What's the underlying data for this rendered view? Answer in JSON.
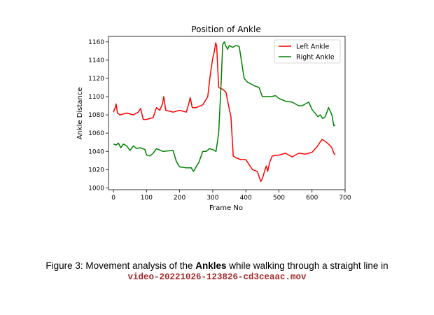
{
  "chart_data": {
    "type": "line",
    "title": "Position of Ankle",
    "xlabel": "Frame No",
    "ylabel": "Ankle  Distance",
    "xlim": [
      -15,
      700
    ],
    "ylim": [
      998,
      1166
    ],
    "xticks": [
      0,
      100,
      200,
      300,
      400,
      500,
      600,
      700
    ],
    "yticks": [
      1000,
      1020,
      1040,
      1060,
      1080,
      1100,
      1120,
      1140,
      1160
    ],
    "grid": false,
    "legend_position": "top-right",
    "series": [
      {
        "name": "Left Ankle",
        "color": "#ff0000",
        "x": [
          0,
          5,
          8,
          12,
          20,
          40,
          60,
          75,
          82,
          90,
          100,
          120,
          130,
          140,
          148,
          152,
          158,
          180,
          200,
          220,
          228,
          232,
          238,
          250,
          270,
          285,
          293,
          300,
          305,
          309,
          312,
          318,
          330,
          340,
          348,
          355,
          362,
          370,
          385,
          400,
          420,
          435,
          445,
          450,
          458,
          462,
          466,
          472,
          480,
          500,
          520,
          540,
          560,
          580,
          600,
          615,
          630,
          640,
          650,
          660,
          666,
          670
        ],
        "y": [
          1083,
          1088,
          1092,
          1082,
          1080,
          1082,
          1080,
          1083,
          1087,
          1075,
          1075,
          1077,
          1088,
          1085,
          1092,
          1100,
          1085,
          1083,
          1085,
          1083,
          1093,
          1099,
          1088,
          1088,
          1091,
          1100,
          1125,
          1142,
          1150,
          1159,
          1155,
          1110,
          1108,
          1105,
          1090,
          1078,
          1035,
          1033,
          1031,
          1031,
          1020,
          1018,
          1007,
          1010,
          1020,
          1024,
          1018,
          1028,
          1035,
          1036,
          1038,
          1034,
          1038,
          1037,
          1039,
          1045,
          1053,
          1051,
          1048,
          1044,
          1038,
          1036
        ]
      },
      {
        "name": "Right Ankle",
        "color": "#008000",
        "x": [
          0,
          8,
          15,
          22,
          30,
          40,
          50,
          60,
          70,
          80,
          95,
          100,
          110,
          120,
          130,
          150,
          180,
          190,
          200,
          220,
          235,
          242,
          248,
          258,
          270,
          280,
          290,
          300,
          310,
          318,
          322,
          326,
          330,
          335,
          340,
          345,
          350,
          360,
          370,
          380,
          395,
          405,
          425,
          440,
          450,
          460,
          475,
          490,
          500,
          520,
          540,
          560,
          570,
          590,
          600,
          618,
          625,
          632,
          640,
          650,
          660,
          666,
          670
        ],
        "y": [
          1048,
          1047,
          1049,
          1044,
          1048,
          1046,
          1041,
          1046,
          1043,
          1044,
          1042,
          1036,
          1035,
          1038,
          1043,
          1040,
          1041,
          1029,
          1023,
          1022,
          1022,
          1018,
          1022,
          1028,
          1040,
          1040,
          1043,
          1042,
          1040,
          1060,
          1090,
          1120,
          1157,
          1160,
          1155,
          1152,
          1156,
          1154,
          1156,
          1155,
          1120,
          1116,
          1112,
          1110,
          1100,
          1100,
          1100,
          1101,
          1098,
          1095,
          1094,
          1090,
          1090,
          1094,
          1086,
          1078,
          1080,
          1076,
          1078,
          1088,
          1080,
          1068,
          1069
        ]
      }
    ]
  },
  "caption": {
    "prefix": "Figure 3:  Movement analysis of the ",
    "bold": "Ankles",
    "suffix": " while walking through a straight line in",
    "filename": "video-20221026-123826-cd3ceaac.mov"
  }
}
